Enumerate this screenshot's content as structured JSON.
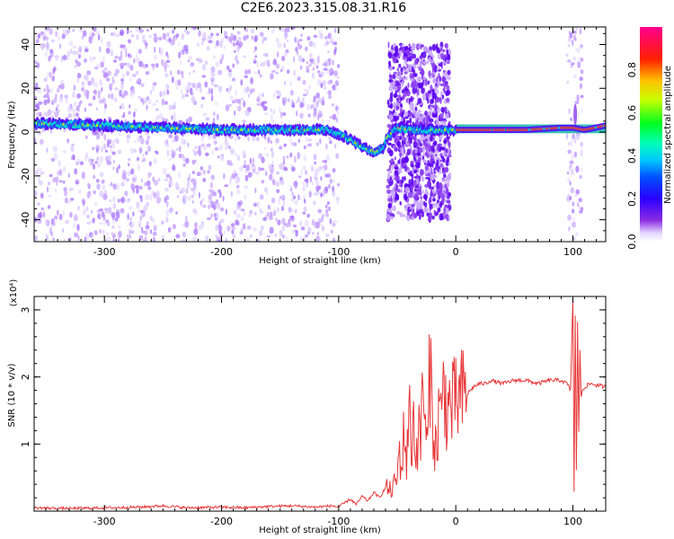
{
  "title": "C2E6.2023.315.08.31.R16",
  "colors": {
    "signal": "#e8393a",
    "spectrogram_noise": "#8a3cf0",
    "colormap": [
      "#ffffff",
      "#d8c0ff",
      "#8a2be2",
      "#4b00ff",
      "#0000ff",
      "#00bfff",
      "#00ffc8",
      "#00ff00",
      "#ffff00",
      "#ff8000",
      "#ff0000",
      "#ff0090"
    ]
  },
  "chart_data": [
    {
      "type": "heatmap",
      "xlabel": "Height of straight line (km)",
      "ylabel": "Frequency (Hz)",
      "xlim": [
        -360,
        128
      ],
      "ylim": [
        -50,
        48
      ],
      "xticks": [
        -300,
        -200,
        -100,
        0,
        100
      ],
      "yticks": [
        -40,
        -20,
        0,
        20,
        40
      ],
      "colorbar": {
        "label": "Normalized spectral amplitude",
        "range": [
          0,
          1
        ],
        "ticks": [
          0.0,
          0.2,
          0.4,
          0.6,
          0.8
        ]
      },
      "ridge": {
        "x": [
          -360,
          -300,
          -250,
          -200,
          -150,
          -110,
          -95,
          -85,
          -75,
          -68,
          -62,
          -58,
          -50,
          -40,
          -20,
          -5,
          0,
          20,
          60,
          90,
          100,
          110,
          128
        ],
        "y": [
          4,
          3,
          2,
          1,
          1,
          1,
          -2,
          -5,
          -8,
          -9,
          -7,
          -2,
          2,
          1,
          1,
          1,
          1,
          1,
          1,
          2,
          2,
          1,
          3
        ]
      },
      "noise_bands": [
        [
          -360,
          -100
        ],
        [
          -58,
          -5
        ],
        [
          95,
          108
        ]
      ]
    },
    {
      "type": "line",
      "xlabel": "Height of straight line (km)",
      "ylabel": "SNR (10 * v/v)",
      "y_multiplier": "(x10⁴)",
      "xlim": [
        -360,
        128
      ],
      "ylim": [
        0,
        3.2
      ],
      "xticks": [
        -300,
        -200,
        -100,
        0,
        100
      ],
      "yticks": [
        1,
        2,
        3
      ],
      "series": [
        {
          "x": [
            -360,
            -330,
            -300,
            -270,
            -250,
            -230,
            -200,
            -180,
            -160,
            -140,
            -120,
            -105,
            -100,
            -95,
            -90,
            -85,
            -80,
            -75,
            -70,
            -65,
            -60,
            -55,
            -50,
            -48,
            -46,
            -44,
            -42,
            -40,
            -38,
            -36,
            -34,
            -32,
            -30,
            -28,
            -26,
            -24,
            -22,
            -20,
            -18,
            -16,
            -14,
            -12,
            -10,
            -8,
            -6,
            -4,
            -2,
            0,
            5,
            10,
            15,
            20,
            25,
            30,
            40,
            50,
            60,
            70,
            80,
            90,
            95,
            98,
            100,
            101,
            102,
            103,
            104,
            105,
            106,
            107,
            108,
            110,
            115,
            120,
            128
          ],
          "y": [
            0.05,
            0.04,
            0.05,
            0.06,
            0.08,
            0.05,
            0.06,
            0.05,
            0.07,
            0.08,
            0.06,
            0.08,
            0.06,
            0.12,
            0.18,
            0.1,
            0.22,
            0.15,
            0.28,
            0.2,
            0.35,
            0.3,
            0.5,
            0.9,
            0.6,
            1.3,
            0.7,
            1.6,
            0.9,
            1.4,
            0.8,
            1.2,
            1.0,
            2.2,
            1.1,
            1.0,
            2.25,
            1.5,
            1.0,
            0.9,
            1.8,
            1.2,
            2.2,
            1.4,
            1.6,
            1.5,
            1.6,
            1.6,
            1.7,
            1.75,
            1.85,
            1.9,
            1.9,
            1.95,
            1.9,
            1.95,
            1.95,
            1.9,
            1.95,
            1.95,
            1.9,
            1.8,
            3.2,
            0.3,
            2.9,
            0.6,
            2.8,
            1.2,
            2.4,
            1.7,
            1.8,
            1.85,
            1.9,
            1.88,
            1.85
          ]
        }
      ]
    }
  ]
}
